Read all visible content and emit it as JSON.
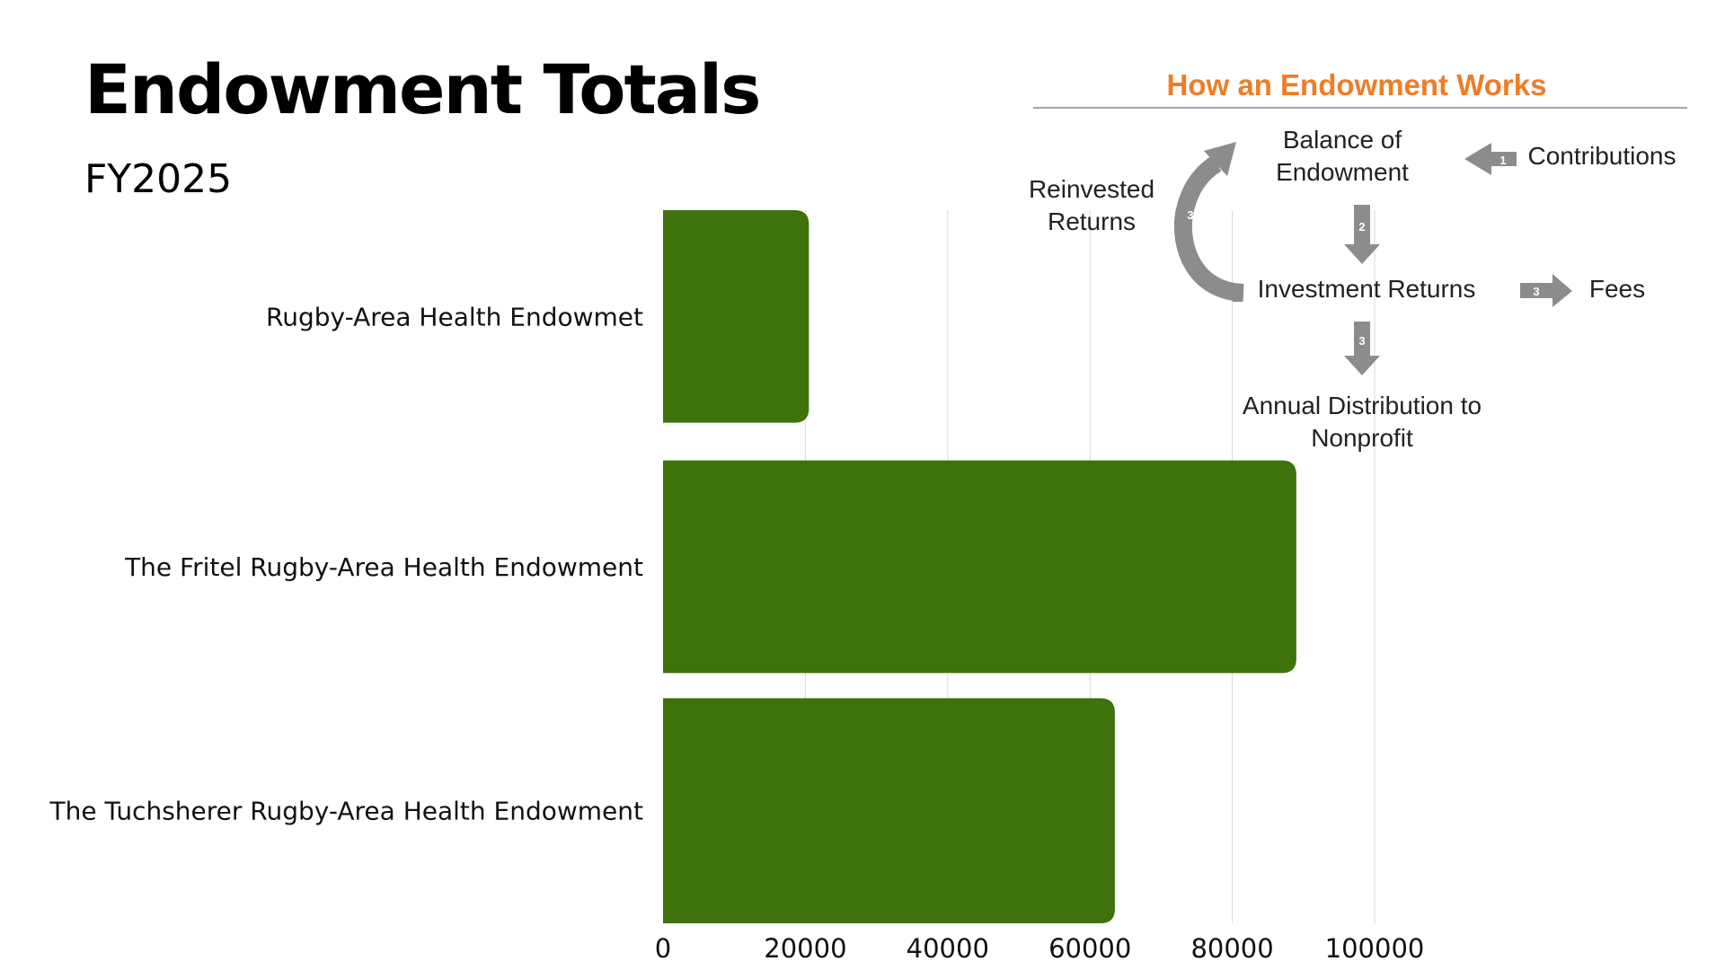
{
  "header": {
    "title": "Endowment Totals",
    "subtitle": "FY2025"
  },
  "diagram": {
    "heading": "How an Endowment Works",
    "balance": "Balance of\nEndowment",
    "contributions": "Contributions",
    "reinvested": "Reinvested\nReturns",
    "investment_returns": "Investment Returns",
    "fees": "Fees",
    "distribution": "Annual Distribution to\nNonprofit",
    "step_contributions": "1",
    "step_returns": "2",
    "step_fees": "3",
    "step_distribution": "3",
    "step_reinvest": "3",
    "arrow_color": "#8c8c8c",
    "heading_color": "#ee7d26"
  },
  "chart_data": {
    "type": "bar",
    "orientation": "horizontal",
    "categories": [
      "Rugby-Area Health Endowmet",
      "The Fritel Rugby-Area Health Endowment",
      "The Tuchsherer Rugby-Area Health Endowment"
    ],
    "values": [
      20500,
      89000,
      63500
    ],
    "xlim": [
      0,
      100000
    ],
    "x_ticks": [
      "0",
      "20000",
      "40000",
      "60000",
      "80000",
      "100000"
    ],
    "grid": true,
    "bar_color": "#3d730a"
  }
}
